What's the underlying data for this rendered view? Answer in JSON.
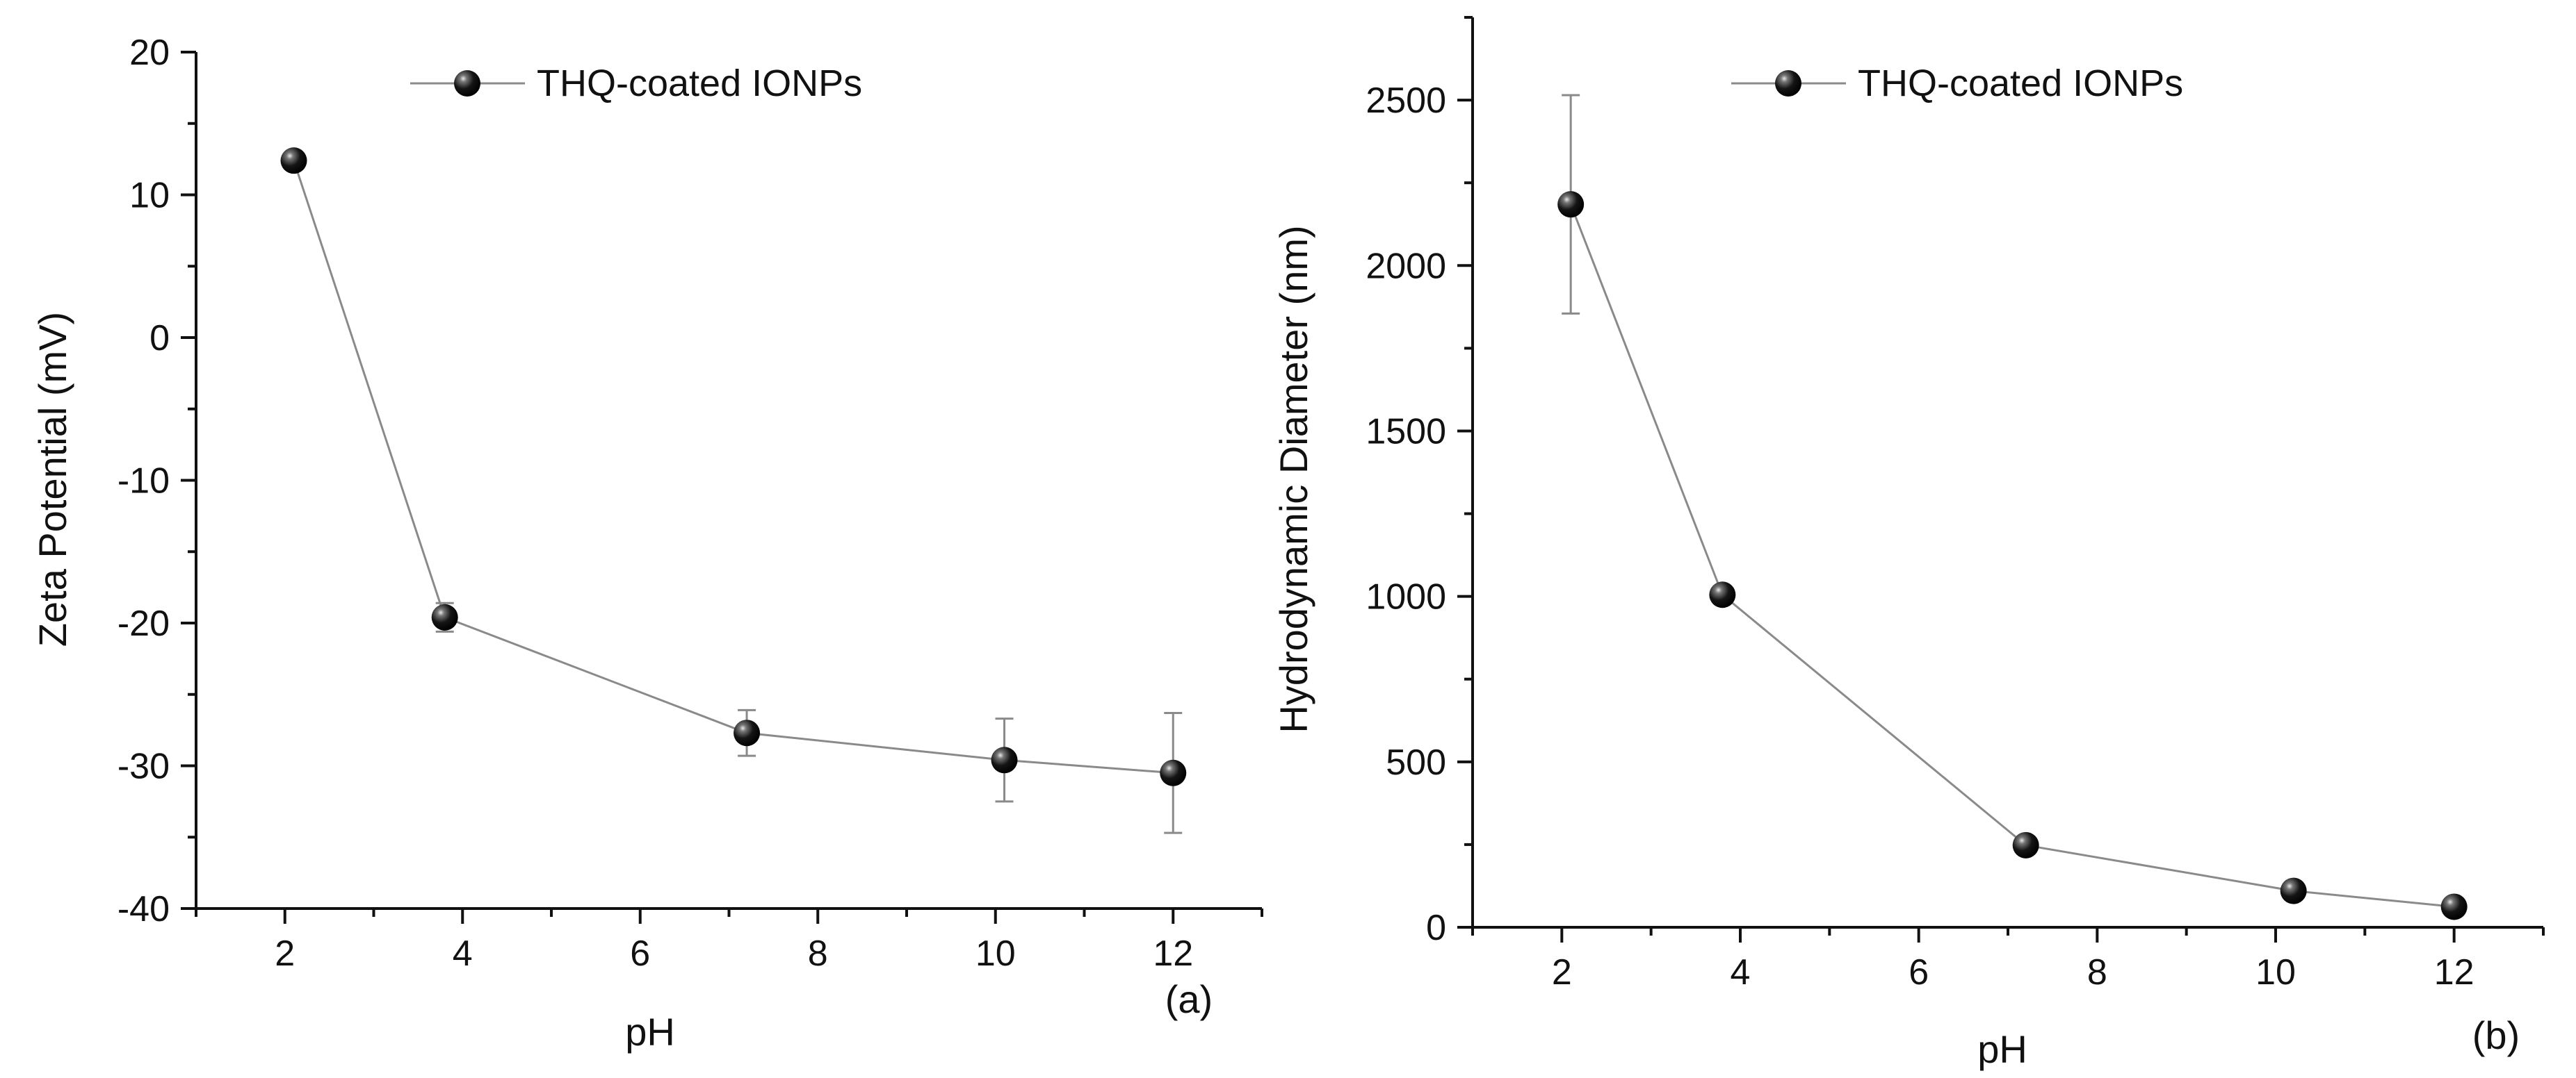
{
  "colors": {
    "marker": "#111111",
    "line": "#8a8a8a",
    "axis": "#111111"
  },
  "chart_data": [
    {
      "type": "line",
      "title": "",
      "xlabel": "pH",
      "ylabel": "Zeta Potential (mV)",
      "panel_label": "(a)",
      "legend": {
        "entries": [
          "THQ-coated IONPs"
        ],
        "placement": "top-center"
      },
      "xlim": [
        1,
        13
      ],
      "ylim": [
        -40,
        20
      ],
      "xticks": [
        2,
        4,
        6,
        8,
        10,
        12
      ],
      "xtick_labels": [
        "2",
        "4",
        "6",
        "8",
        "10",
        "12"
      ],
      "yticks": [
        -40,
        -30,
        -20,
        -10,
        0,
        10,
        20
      ],
      "ytick_labels": [
        "-40",
        "-30",
        "-20",
        "-10",
        "0",
        "10",
        "20"
      ],
      "series": [
        {
          "name": "THQ-coated IONPs",
          "x": [
            2.1,
            3.8,
            7.2,
            10.1,
            12.0
          ],
          "y": [
            12.4,
            -19.6,
            -27.7,
            -29.6,
            -30.5
          ],
          "error": [
            0.5,
            1.0,
            1.6,
            2.9,
            4.2
          ]
        }
      ]
    },
    {
      "type": "line",
      "title": "",
      "xlabel": "pH",
      "ylabel": "Hydrodynamic Diameter (nm)",
      "panel_label": "(b)",
      "legend": {
        "entries": [
          "THQ-coated IONPs"
        ],
        "placement": "top-center"
      },
      "xlim": [
        1,
        13
      ],
      "ylim": [
        0,
        2750
      ],
      "xticks": [
        2,
        4,
        6,
        8,
        10,
        12
      ],
      "xtick_labels": [
        "2",
        "4",
        "6",
        "8",
        "10",
        "12"
      ],
      "yticks": [
        0,
        500,
        1000,
        1500,
        2000,
        2500
      ],
      "ytick_labels": [
        "0",
        "500",
        "1000",
        "1500",
        "2000",
        "2500"
      ],
      "series": [
        {
          "name": "THQ-coated IONPs",
          "x": [
            2.1,
            3.8,
            7.2,
            10.2,
            12.0
          ],
          "y": [
            2185,
            1005,
            248,
            110,
            62
          ],
          "error": [
            330,
            20,
            10,
            8,
            5
          ]
        }
      ]
    }
  ]
}
